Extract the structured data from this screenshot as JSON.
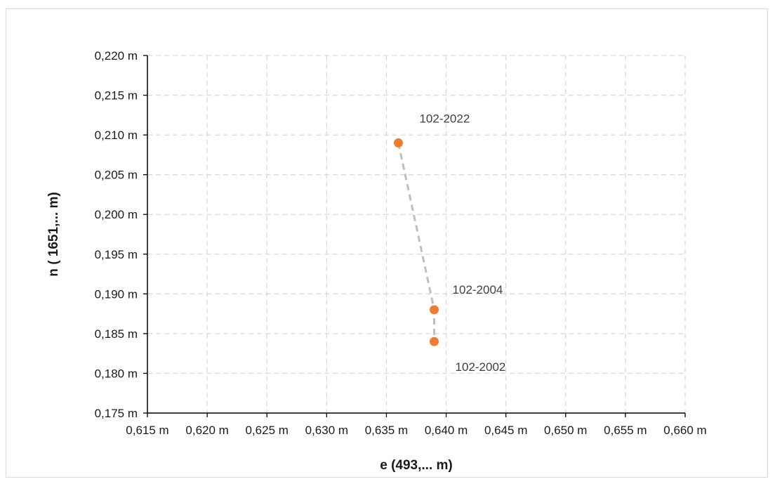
{
  "chart_data": {
    "type": "scatter",
    "title": "",
    "xlabel": "e (493,... m)",
    "ylabel": "n ( 1651,... m)",
    "xlim": [
      0.615,
      0.66
    ],
    "ylim": [
      0.175,
      0.22
    ],
    "x_ticks": [
      0.615,
      0.62,
      0.625,
      0.63,
      0.635,
      0.64,
      0.645,
      0.65,
      0.655,
      0.66
    ],
    "y_ticks": [
      0.175,
      0.18,
      0.185,
      0.19,
      0.195,
      0.2,
      0.205,
      0.21,
      0.215,
      0.22
    ],
    "x_tick_labels": [
      "0,615 m",
      "0,620 m",
      "0,625 m",
      "0,630 m",
      "0,635 m",
      "0,640 m",
      "0,645 m",
      "0,650 m",
      "0,655 m",
      "0,660 m"
    ],
    "y_tick_labels": [
      "0,175 m",
      "0,180 m",
      "0,185 m",
      "0,190 m",
      "0,195 m",
      "0,200 m",
      "0,205 m",
      "0,210 m",
      "0,215 m",
      "0,220 m"
    ],
    "grid": true,
    "legend": "none",
    "marker_color": "#ed7d31",
    "line_color": "#bfbfbf",
    "points": [
      {
        "label": "102-2022",
        "x": 0.636,
        "y": 0.209
      },
      {
        "label": "102-2004",
        "x": 0.639,
        "y": 0.188
      },
      {
        "label": "102-2002",
        "x": 0.639,
        "y": 0.184
      }
    ]
  }
}
